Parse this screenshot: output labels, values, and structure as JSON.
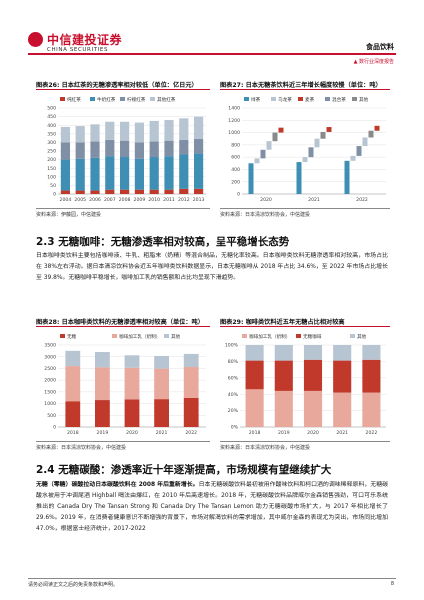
{
  "header": {
    "logo_cn": "中信建投证券",
    "logo_en": "CHINA SECURITIES",
    "tag": "食品饮料",
    "report_type": "▲ 数行业深度报告"
  },
  "fig26": {
    "title": "图表26:  日本红茶的无糖渗透率相对较低（单位：亿日元）",
    "source": "资料来源：伊藤园，中信建投",
    "chart_data": {
      "type": "bar",
      "stacked": true,
      "categories": [
        "2004",
        "2005",
        "2006",
        "2007",
        "2008",
        "2009",
        "2010",
        "2011",
        "2012",
        "2013"
      ],
      "series": [
        {
          "name": "纯红茶",
          "color": "#c0392b",
          "values": [
            20,
            20,
            20,
            25,
            25,
            25,
            25,
            25,
            30,
            30
          ]
        },
        {
          "name": "牛奶红茶",
          "color": "#3f8fb5",
          "values": [
            180,
            185,
            190,
            195,
            190,
            180,
            190,
            195,
            200,
            205
          ]
        },
        {
          "name": "柠檬红茶",
          "color": "#7f8fa6",
          "values": [
            100,
            95,
            95,
            95,
            95,
            95,
            90,
            90,
            85,
            85
          ]
        },
        {
          "name": "其他红茶",
          "color": "#b7c4d1",
          "values": [
            90,
            95,
            100,
            105,
            110,
            115,
            120,
            120,
            125,
            130
          ]
        }
      ],
      "ylim": [
        0,
        500
      ],
      "yticks": [
        0,
        50,
        100,
        150,
        200,
        250,
        300,
        350,
        400,
        450,
        500
      ]
    }
  },
  "fig27": {
    "title": "图表27:  日本无糖茶饮料近三年增长幅度较慢（单位：吨）",
    "source": "资料来源：日本清凉饮料协会，中信建投",
    "chart_data": {
      "type": "waterfall",
      "categories": [
        "2020",
        "2021",
        "2022"
      ],
      "legend": [
        "绿茶",
        "乌龙茶",
        "麦茶",
        "混合茶",
        "其他"
      ],
      "colors": [
        "#3f8fb5",
        "#b7c4d1",
        "#c0392b",
        "#7f8fa6",
        "#8a8a8a"
      ],
      "ylim": [
        0,
        1400
      ],
      "yticks": [
        0,
        200,
        400,
        600,
        800,
        1000,
        1200,
        1400
      ],
      "groups": [
        {
          "year": "2020",
          "segments": [
            [
              0,
              500,
              0
            ],
            [
              500,
              580,
              1
            ],
            [
              580,
              720,
              3
            ],
            [
              720,
              860,
              1
            ],
            [
              860,
              1000,
              4
            ],
            [
              1000,
              1080,
              2
            ]
          ]
        },
        {
          "year": "2021",
          "segments": [
            [
              0,
              520,
              0
            ],
            [
              520,
              600,
              1
            ],
            [
              600,
              760,
              3
            ],
            [
              760,
              900,
              1
            ],
            [
              900,
              1010,
              4
            ],
            [
              1010,
              1090,
              2
            ]
          ]
        },
        {
          "year": "2022",
          "segments": [
            [
              0,
              540,
              0
            ],
            [
              540,
              620,
              1
            ],
            [
              620,
              780,
              3
            ],
            [
              780,
              920,
              1
            ],
            [
              920,
              1030,
              4
            ],
            [
              1030,
              1110,
              2
            ]
          ]
        }
      ]
    }
  },
  "section": {
    "title": "2.3  无糖咖啡：无糖渗透率相对较高，呈平稳增长态势",
    "para": "日本咖啡类饮料主要包括咖啡液、牛乳、粗脂末（奶精）等混合制品，无糖化率较高。日本咖啡类饮料无糖渗透率相对较高，市场占比在 38%左右浮动。据日本清凉饮料协会近五年咖啡类饮料数据显示，日本无糖咖啡从 2018 年占比 34.6%，至 2022 年市场占比增长至 39.8%。无糖咖啡平稳增长，咖啡加工乳的销售额和占比均呈现下滑趋势。"
  },
  "fig28": {
    "title": "图表28:  日本咖啡类饮料的无糖渗透率相对较高（单位：吨）",
    "source": "资料来源：日本清凉饮料协会，中信建投",
    "chart_data": {
      "type": "bar",
      "stacked": true,
      "categories": [
        "2018",
        "2019",
        "2020",
        "2021",
        "2022"
      ],
      "series": [
        {
          "name": "无糖",
          "color": "#c0392b",
          "values": [
            1100,
            1150,
            1180,
            1190,
            1240
          ]
        },
        {
          "name": "咖啡加工乳（奶制）",
          "color": "#e8a89c",
          "values": [
            1500,
            1400,
            1350,
            1300,
            1320
          ]
        },
        {
          "name": "其他",
          "color": "#b7c4d1",
          "values": [
            650,
            650,
            530,
            540,
            560
          ]
        }
      ],
      "ylim": [
        0,
        3500
      ],
      "yticks": [
        0,
        500,
        1000,
        1500,
        2000,
        2500,
        3000,
        3500
      ]
    }
  },
  "fig29": {
    "title": "图表29:  咖啡类饮料近五年无糖占比相对较高",
    "source": "资料来源：日本清凉饮料协会，中信建投",
    "chart_data": {
      "type": "bar",
      "stacked": true,
      "percent": true,
      "categories": [
        "2018",
        "2019",
        "2020",
        "2021",
        "2022"
      ],
      "series": [
        {
          "name": "咖啡加工乳（奶制）",
          "color": "#e8a89c",
          "values": [
            46,
            44,
            44,
            42,
            42
          ]
        },
        {
          "name": "无糖咖啡",
          "color": "#c0392b",
          "values": [
            35,
            37,
            38,
            39,
            40
          ]
        },
        {
          "name": "其他",
          "color": "#b7c4d1",
          "values": [
            19,
            19,
            18,
            19,
            18
          ]
        }
      ],
      "ylim": [
        0,
        100
      ],
      "yticks": [
        "0%",
        "20%",
        "40%",
        "60%",
        "80%",
        "100%"
      ]
    }
  },
  "section2": {
    "title": "2.4  无糖碳酸：渗透率近十年逐渐提高，市场规模有望继续扩大",
    "para_bold": "无糖（零糖）碳酸拉动日本碳酸饮料在 2008 年后重新增长。",
    "para": "日本无糖碳酸饮料最初被用作酸味饮料和柯口酒的调味稀释原料，无糖碳酸水被用于冲调尾酒 Highball 喝法由爆红，在 2010 年后高速增长。2018 年，无糖碳酸饮料品牌威尔金森销售强劲，可口可乐系统推出的 Canada Dry The Tansan Strong 和 Canada Dry The Tansan Lemon 助力无糖碳酸市场扩大，与 2017 年相比增长了 29.6%。2019 年，在消费者健康意识不断增强的背景下，市场对解渴饮料的需求增加，其中威尔金森的表现尤为突出，市场同比增加 47.0%，根据富士经济统计，2017-2022"
  },
  "footer": {
    "note": "请务必阅读正文之后的免责条款和声明。",
    "page": "8"
  }
}
